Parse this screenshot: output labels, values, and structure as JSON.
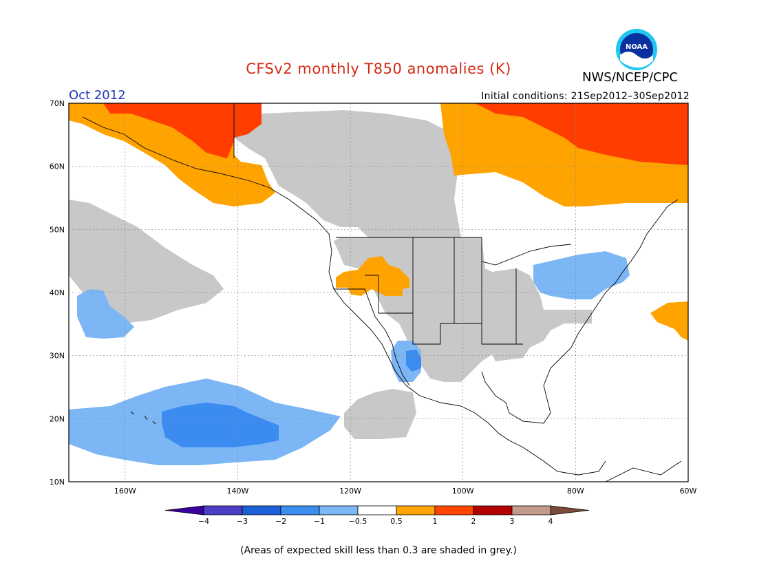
{
  "header": {
    "title": "CFSv2 monthly T850 anomalies (K)",
    "agency": "NWS/NCEP/CPC",
    "logo_text": "NOAA",
    "month": "Oct 2012",
    "initial_conditions": "Initial conditions: 21Sep2012–30Sep2012"
  },
  "map": {
    "projection": "lat-lon",
    "lat_range": [
      10,
      70
    ],
    "lon_range": [
      -170,
      -60
    ],
    "lat_labels": [
      "70N",
      "60N",
      "50N",
      "40N",
      "30N",
      "20N",
      "10N"
    ],
    "lon_labels": [
      "160W",
      "140W",
      "120W",
      "100W",
      "80W",
      "60W"
    ],
    "grid": "dashed"
  },
  "colorbar": {
    "tick_labels": [
      "−4",
      "−3",
      "−2",
      "−1",
      "−0.5",
      "0.5",
      "1",
      "2",
      "3",
      "4"
    ],
    "colors": [
      "#3b00a0",
      "#4b3ec4",
      "#1d5fd9",
      "#3c8df0",
      "#7bb6f5",
      "#ffffff",
      "#ffa500",
      "#ff4500",
      "#b30000",
      "#c49a8a",
      "#7a4a3a"
    ]
  },
  "footnote": "(Areas of expected skill less than 0.3 are shaded in grey.)",
  "colors": {
    "title": "#d42a16",
    "month": "#2236b8",
    "orange": "#ffa300",
    "red": "#ff3d00",
    "grey": "#c8c8c8",
    "light_blue": "#7cb6f5",
    "mid_blue": "#3b8bf0"
  }
}
